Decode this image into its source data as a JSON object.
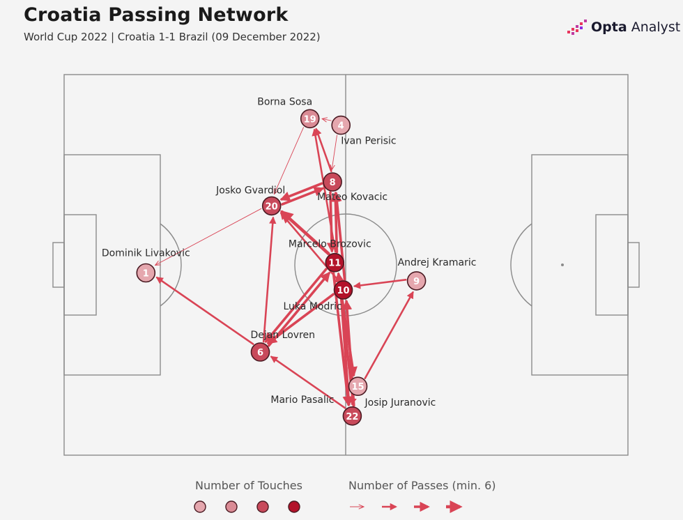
{
  "header": {
    "title": "Croatia Passing Network",
    "subtitle": "World Cup 2022 | Croatia 1-1 Brazil (09 December 2022)",
    "brand_bold": "Opta",
    "brand_light": " Analyst"
  },
  "legend": {
    "touches_label": "Number of Touches",
    "passes_label": "Number of Passes (min. 6)"
  },
  "colors": {
    "arrow": "#d94455",
    "node_dark": "#b3122a",
    "node_mid": "#c84a5b",
    "node_light": "#e5a7ae",
    "pitch_line": "#8a8a8a",
    "background": "#f4f4f4"
  },
  "chart_data": {
    "type": "network",
    "title": "Croatia Passing Network",
    "subtitle": "World Cup 2022 | Croatia 1-1 Brazil (09 December 2022)",
    "nodes": [
      {
        "id": 1,
        "name": "Dominik Livakovic",
        "x": 14.5,
        "y": 52.1,
        "touch_level": 1
      },
      {
        "id": 19,
        "name": "Borna Sosa",
        "x": 43.6,
        "y": 11.6,
        "touch_level": 2
      },
      {
        "id": 4,
        "name": "Ivan Perisic",
        "x": 49.1,
        "y": 13.3,
        "touch_level": 1
      },
      {
        "id": 8,
        "name": "Mateo Kovacic",
        "x": 47.6,
        "y": 28.2,
        "touch_level": 3
      },
      {
        "id": 20,
        "name": "Josko Gvardiol",
        "x": 36.8,
        "y": 34.5,
        "touch_level": 3
      },
      {
        "id": 11,
        "name": "Marcelo Brozovic",
        "x": 48.0,
        "y": 49.4,
        "touch_level": 4
      },
      {
        "id": 9,
        "name": "Andrej Kramaric",
        "x": 62.5,
        "y": 54.2,
        "touch_level": 1
      },
      {
        "id": 10,
        "name": "Luka Modric",
        "x": 49.5,
        "y": 56.6,
        "touch_level": 4
      },
      {
        "id": 6,
        "name": "Dejan Lovren",
        "x": 34.8,
        "y": 72.9,
        "touch_level": 3
      },
      {
        "id": 15,
        "name": "Josip Juranovic",
        "x": 52.1,
        "y": 81.9,
        "touch_level": 1
      },
      {
        "id": 22,
        "name": "Mario Pasalic",
        "x": 51.1,
        "y": 89.7,
        "touch_level": 3
      }
    ],
    "passes": [
      {
        "from": 20,
        "to": 1,
        "level": 1
      },
      {
        "from": 6,
        "to": 1,
        "level": 2
      },
      {
        "from": 8,
        "to": 19,
        "level": 2
      },
      {
        "from": 11,
        "to": 19,
        "level": 2
      },
      {
        "from": 4,
        "to": 19,
        "level": 1
      },
      {
        "from": 20,
        "to": 8,
        "level": 3
      },
      {
        "from": 8,
        "to": 20,
        "level": 3
      },
      {
        "from": 11,
        "to": 20,
        "level": 4
      },
      {
        "from": 10,
        "to": 20,
        "level": 2
      },
      {
        "from": 6,
        "to": 20,
        "level": 2
      },
      {
        "from": 11,
        "to": 8,
        "level": 3
      },
      {
        "from": 10,
        "to": 8,
        "level": 3
      },
      {
        "from": 8,
        "to": 11,
        "level": 3
      },
      {
        "from": 9,
        "to": 10,
        "level": 2
      },
      {
        "from": 22,
        "to": 11,
        "level": 3
      },
      {
        "from": 6,
        "to": 11,
        "level": 3
      },
      {
        "from": 11,
        "to": 6,
        "level": 3
      },
      {
        "from": 10,
        "to": 6,
        "level": 3
      },
      {
        "from": 22,
        "to": 6,
        "level": 2
      },
      {
        "from": 15,
        "to": 9,
        "level": 2
      },
      {
        "from": 10,
        "to": 15,
        "level": 3
      },
      {
        "from": 11,
        "to": 22,
        "level": 3
      },
      {
        "from": 10,
        "to": 22,
        "level": 3
      },
      {
        "from": 22,
        "to": 10,
        "level": 3
      },
      {
        "from": 15,
        "to": 22,
        "level": 2
      },
      {
        "from": 19,
        "to": 20,
        "level": 1
      },
      {
        "from": 4,
        "to": 8,
        "level": 1
      }
    ]
  }
}
